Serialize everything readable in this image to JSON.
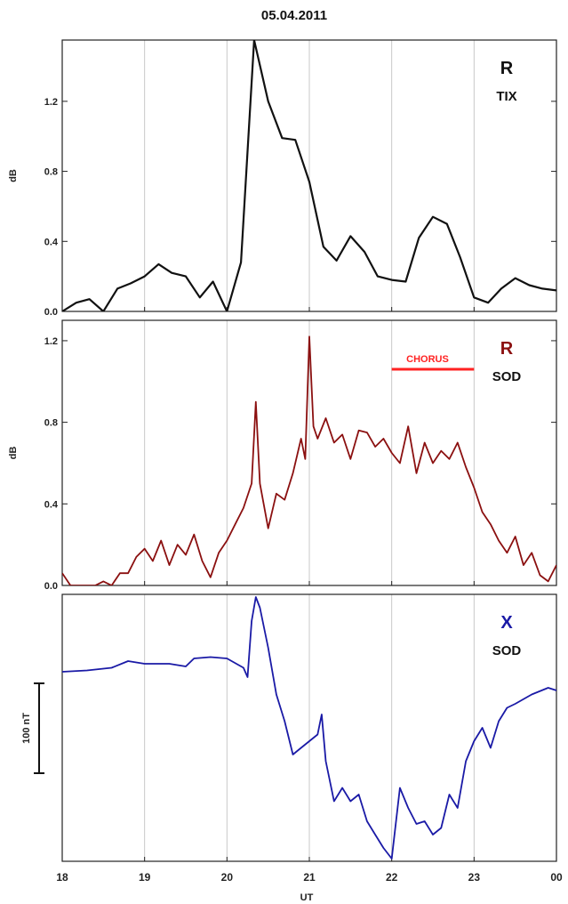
{
  "title": "05.04.2011",
  "x_axis": {
    "label": "UT",
    "tick_labels": [
      "18",
      "19",
      "20",
      "21",
      "22",
      "23",
      "00"
    ]
  },
  "colors": {
    "panel1": "#111111",
    "panel2": "#8b1010",
    "panel3": "#1a1aa6",
    "chorus": "#ff2222",
    "grid": "#c8c8c8"
  },
  "chart_data": [
    {
      "type": "line",
      "title": "",
      "ylabel": "dB",
      "ylim": [
        0.0,
        1.55
      ],
      "xlim": [
        18,
        24
      ],
      "yticks": [
        "0.0",
        "0.4",
        "0.8",
        "1.2"
      ],
      "grid": "vertical",
      "annotation_mode": "R",
      "annotation_station": "TIX",
      "series": [
        {
          "x": [
            18.0,
            18.17,
            18.33,
            18.5,
            18.67,
            18.83,
            19.0,
            19.17,
            19.33,
            19.5,
            19.67,
            19.83,
            20.0,
            20.17,
            20.33,
            20.5,
            20.67,
            20.83,
            21.0,
            21.17,
            21.33,
            21.5,
            21.67,
            21.83,
            22.0,
            22.17,
            22.33,
            22.5,
            22.67,
            22.83,
            23.0,
            23.17,
            23.33,
            23.5,
            23.67,
            23.83,
            24.0
          ],
          "y": [
            0.0,
            0.05,
            0.07,
            0.0,
            0.13,
            0.16,
            0.2,
            0.27,
            0.22,
            0.2,
            0.08,
            0.17,
            0.0,
            0.28,
            1.55,
            1.2,
            0.99,
            0.98,
            0.74,
            0.37,
            0.29,
            0.43,
            0.34,
            0.2,
            0.18,
            0.17,
            0.42,
            0.54,
            0.5,
            0.31,
            0.08,
            0.05,
            0.13,
            0.19,
            0.15,
            0.13,
            0.12
          ]
        }
      ]
    },
    {
      "type": "line",
      "title": "",
      "ylabel": "dB",
      "ylim": [
        0.0,
        1.3
      ],
      "xlim": [
        18,
        24
      ],
      "yticks": [
        "0.0",
        "0.4",
        "0.8",
        "1.2"
      ],
      "grid": "vertical",
      "annotation_mode": "R",
      "annotation_station": "SOD",
      "chorus": {
        "label": "CHORUS",
        "x_start": 22.0,
        "x_end": 23.0,
        "y": 1.06
      },
      "series": [
        {
          "x": [
            18.0,
            18.1,
            18.2,
            18.3,
            18.4,
            18.5,
            18.6,
            18.7,
            18.8,
            18.9,
            19.0,
            19.1,
            19.2,
            19.3,
            19.4,
            19.5,
            19.6,
            19.7,
            19.8,
            19.9,
            20.0,
            20.1,
            20.2,
            20.3,
            20.35,
            20.4,
            20.5,
            20.6,
            20.7,
            20.8,
            20.9,
            20.95,
            21.0,
            21.05,
            21.1,
            21.2,
            21.3,
            21.4,
            21.5,
            21.6,
            21.7,
            21.8,
            21.9,
            22.0,
            22.1,
            22.2,
            22.3,
            22.4,
            22.5,
            22.6,
            22.7,
            22.8,
            22.9,
            23.0,
            23.1,
            23.2,
            23.3,
            23.4,
            23.5,
            23.6,
            23.7,
            23.8,
            23.9,
            24.0
          ],
          "y": [
            0.06,
            0.0,
            0.0,
            0.0,
            0.0,
            0.02,
            0.0,
            0.06,
            0.06,
            0.14,
            0.18,
            0.12,
            0.22,
            0.1,
            0.2,
            0.15,
            0.25,
            0.12,
            0.04,
            0.16,
            0.22,
            0.3,
            0.38,
            0.5,
            0.9,
            0.5,
            0.28,
            0.45,
            0.42,
            0.55,
            0.72,
            0.62,
            1.22,
            0.78,
            0.72,
            0.82,
            0.7,
            0.74,
            0.62,
            0.76,
            0.75,
            0.68,
            0.72,
            0.65,
            0.6,
            0.78,
            0.55,
            0.7,
            0.6,
            0.66,
            0.62,
            0.7,
            0.58,
            0.48,
            0.36,
            0.3,
            0.22,
            0.16,
            0.24,
            0.1,
            0.16,
            0.05,
            0.02,
            0.1
          ]
        }
      ]
    },
    {
      "type": "line",
      "title": "",
      "ylabel": "100 nT",
      "ylim": [
        -1.0,
        1.0
      ],
      "xlim": [
        18,
        24
      ],
      "yticks": [],
      "grid": "vertical",
      "scale_bar": "100 nT",
      "annotation_mode": "X",
      "annotation_station": "SOD",
      "series": [
        {
          "x": [
            18.0,
            18.3,
            18.6,
            18.8,
            19.0,
            19.3,
            19.5,
            19.6,
            19.8,
            20.0,
            20.2,
            20.25,
            20.3,
            20.35,
            20.4,
            20.5,
            20.6,
            20.7,
            20.8,
            20.9,
            21.0,
            21.1,
            21.15,
            21.2,
            21.3,
            21.4,
            21.5,
            21.6,
            21.7,
            21.8,
            21.9,
            22.0,
            22.1,
            22.2,
            22.3,
            22.4,
            22.5,
            22.6,
            22.7,
            22.8,
            22.9,
            23.0,
            23.1,
            23.2,
            23.3,
            23.4,
            23.5,
            23.7,
            23.9,
            24.0
          ],
          "y": [
            0.42,
            0.43,
            0.45,
            0.5,
            0.48,
            0.48,
            0.46,
            0.52,
            0.53,
            0.52,
            0.45,
            0.38,
            0.8,
            0.98,
            0.9,
            0.6,
            0.25,
            0.05,
            -0.2,
            -0.15,
            -0.1,
            -0.05,
            0.1,
            -0.25,
            -0.55,
            -0.45,
            -0.55,
            -0.5,
            -0.7,
            -0.8,
            -0.9,
            -0.98,
            -0.45,
            -0.6,
            -0.72,
            -0.7,
            -0.8,
            -0.75,
            -0.5,
            -0.6,
            -0.25,
            -0.1,
            0.0,
            -0.15,
            0.05,
            0.15,
            0.18,
            0.25,
            0.3,
            0.28
          ]
        }
      ]
    }
  ]
}
